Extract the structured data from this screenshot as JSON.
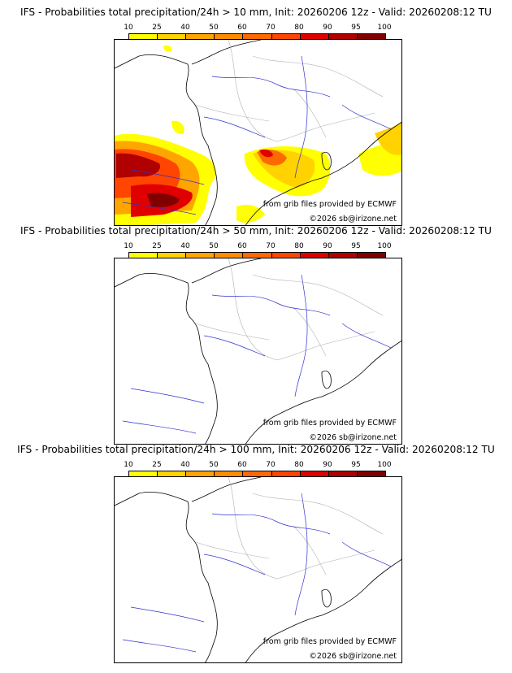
{
  "colorbar": {
    "labels": [
      "10",
      "25",
      "40",
      "50",
      "60",
      "70",
      "80",
      "90",
      "95",
      "100"
    ],
    "colors": [
      "#ffff00",
      "#ffd200",
      "#ffa500",
      "#ff8c00",
      "#ff6a00",
      "#ff4500",
      "#e00000",
      "#b00000",
      "#800000",
      "#4b0000"
    ]
  },
  "credits": {
    "source": "from grib files provided by ECMWF",
    "copyright": "©2026 sb@irizone.net"
  },
  "panels": [
    {
      "title": "IFS - Probabilities total precipitation/24h > 10 mm, Init: 20260206 12z - Valid: 20260208:12 TU",
      "has_precip": true
    },
    {
      "title": "IFS - Probabilities total precipitation/24h > 50 mm, Init: 20260206 12z - Valid: 20260208:12 TU",
      "has_precip": false
    },
    {
      "title": "IFS - Probabilities total precipitation/24h > 100 mm, Init: 20260206 12z - Valid: 20260208:12 TU",
      "has_precip": false
    }
  ]
}
